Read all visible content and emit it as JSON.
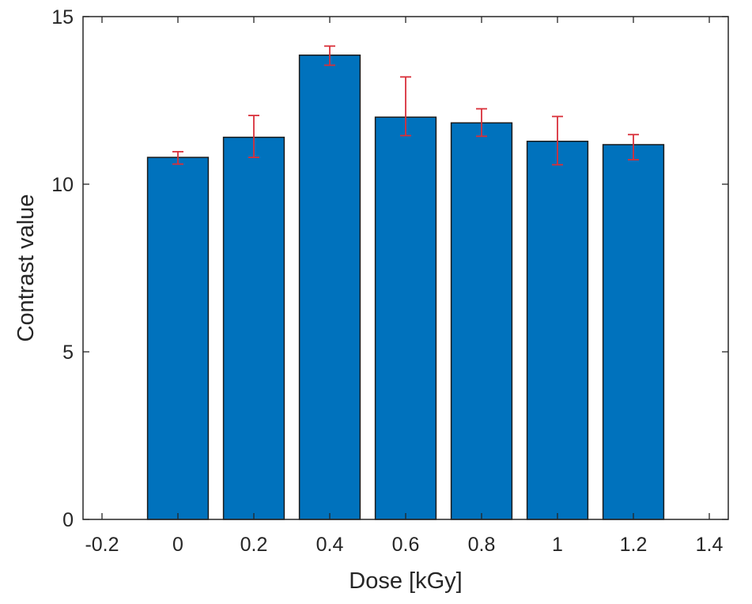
{
  "chart_data": {
    "type": "bar",
    "x": [
      0,
      0.2,
      0.4,
      0.6,
      0.8,
      1,
      1.2
    ],
    "values": [
      10.8,
      11.4,
      13.85,
      12.0,
      11.83,
      11.28,
      11.18
    ],
    "error_low": [
      10.6,
      10.8,
      13.55,
      11.45,
      11.43,
      10.58,
      10.73
    ],
    "error_high": [
      10.97,
      12.05,
      14.12,
      13.2,
      12.25,
      12.02,
      11.48
    ],
    "xlabel": "Dose [kGy]",
    "ylabel": "Contrast value",
    "xlim": [
      -0.25,
      1.45
    ],
    "ylim": [
      0,
      15
    ],
    "xticks": [
      -0.2,
      0,
      0.2,
      0.4,
      0.6,
      0.8,
      1,
      1.2,
      1.4
    ],
    "xtick_labels": [
      "-0.2",
      "0",
      "0.2",
      "0.4",
      "0.6",
      "0.8",
      "1",
      "1.2",
      "1.4"
    ],
    "yticks": [
      0,
      5,
      10,
      15
    ],
    "ytick_labels": [
      "0",
      "5",
      "10",
      "15"
    ],
    "bar_width_data": 0.16,
    "grid": false,
    "colors": {
      "bar": "#0072bd",
      "bar_edge": "#1a1a1a",
      "error": "#d9303a",
      "axis": "#262626"
    }
  }
}
